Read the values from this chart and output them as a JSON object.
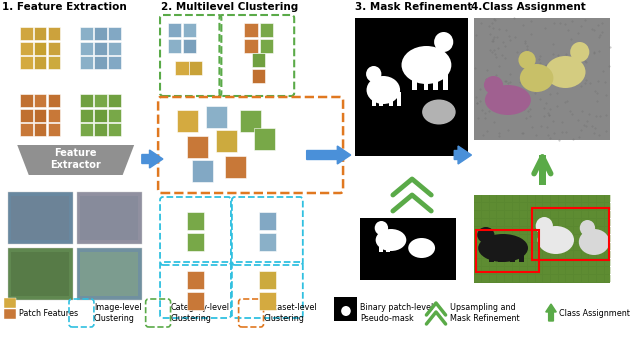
{
  "title_1": "1. Feature Extraction",
  "title_2": "2. Multilevel Clustering",
  "title_3": "3. Mask Refinement",
  "title_4": "4.Class Assignment",
  "bg_color": "#ffffff",
  "arrow_color": "#4a90d9",
  "green_color": "#5aaa48",
  "orange_color": "#e07820",
  "blue_dashed_color": "#30c0e0",
  "yellow_patches": [
    "#d4aa40",
    "#c8a238",
    "#ccaa3e",
    "#d2a840",
    "#c6a030",
    "#caa23c",
    "#d0a640",
    "#c8a038",
    "#cca23c"
  ],
  "blue_patches": [
    "#8ab0c8",
    "#7aa0bc",
    "#82a8c4",
    "#8ab0c8",
    "#7aa0bc",
    "#88aec6",
    "#8ab0c8",
    "#7aa0bc",
    "#82a8c4"
  ],
  "orange_patches": [
    "#c87838",
    "#c07030",
    "#c87838",
    "#c07030",
    "#bc6c2c",
    "#c87838",
    "#c07030",
    "#c87838",
    "#c07030"
  ],
  "green_patches": [
    "#78a848",
    "#70a040",
    "#78a848",
    "#70a040",
    "#6c9c3c",
    "#78a848",
    "#70a040",
    "#78a848",
    "#70a040"
  ],
  "title_fontsize": 7.5,
  "legend_fontsize": 5.8
}
